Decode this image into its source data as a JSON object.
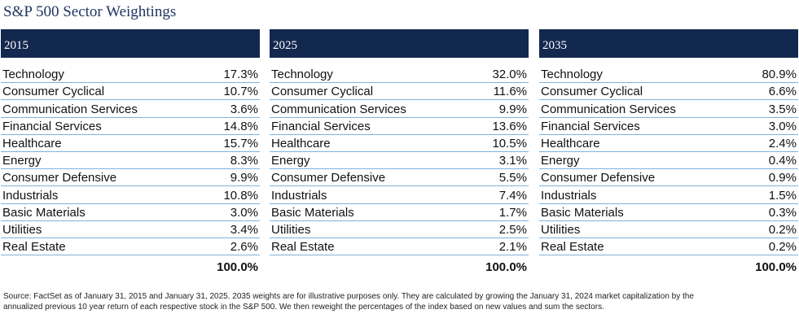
{
  "title": "S&P 500 Sector Weightings",
  "panels": [
    {
      "year": "2015",
      "rows": [
        {
          "sector": "Technology",
          "value": "17.3%"
        },
        {
          "sector": "Consumer Cyclical",
          "value": "10.7%"
        },
        {
          "sector": "Communication Services",
          "value": "3.6%"
        },
        {
          "sector": "Financial Services",
          "value": "14.8%"
        },
        {
          "sector": "Healthcare",
          "value": "15.7%"
        },
        {
          "sector": "Energy",
          "value": "8.3%"
        },
        {
          "sector": "Consumer Defensive",
          "value": "9.9%"
        },
        {
          "sector": "Industrials",
          "value": "10.8%"
        },
        {
          "sector": "Basic Materials",
          "value": "3.0%"
        },
        {
          "sector": "Utilities",
          "value": "3.4%"
        },
        {
          "sector": "Real Estate",
          "value": "2.6%"
        }
      ],
      "total": "100.0%"
    },
    {
      "year": "2025",
      "rows": [
        {
          "sector": "Technology",
          "value": "32.0%"
        },
        {
          "sector": "Consumer Cyclical",
          "value": "11.6%"
        },
        {
          "sector": "Communication Services",
          "value": "9.9%"
        },
        {
          "sector": "Financial Services",
          "value": "13.6%"
        },
        {
          "sector": "Healthcare",
          "value": "10.5%"
        },
        {
          "sector": "Energy",
          "value": "3.1%"
        },
        {
          "sector": "Consumer Defensive",
          "value": "5.5%"
        },
        {
          "sector": "Industrials",
          "value": "7.4%"
        },
        {
          "sector": "Basic Materials",
          "value": "1.7%"
        },
        {
          "sector": "Utilities",
          "value": "2.5%"
        },
        {
          "sector": "Real Estate",
          "value": "2.1%"
        }
      ],
      "total": "100.0%"
    },
    {
      "year": "2035",
      "rows": [
        {
          "sector": "Technology",
          "value": "80.9%"
        },
        {
          "sector": "Consumer Cyclical",
          "value": "6.6%"
        },
        {
          "sector": "Communication Services",
          "value": "3.5%"
        },
        {
          "sector": "Financial Services",
          "value": "3.0%"
        },
        {
          "sector": "Healthcare",
          "value": "2.4%"
        },
        {
          "sector": "Energy",
          "value": "0.4%"
        },
        {
          "sector": "Consumer Defensive",
          "value": "0.9%"
        },
        {
          "sector": "Industrials",
          "value": "1.5%"
        },
        {
          "sector": "Basic Materials",
          "value": "0.3%"
        },
        {
          "sector": "Utilities",
          "value": "0.2%"
        },
        {
          "sector": "Real Estate",
          "value": "0.2%"
        }
      ],
      "total": "100.0%"
    }
  ],
  "footnote": {
    "line1": "Source: FactSet as of January 31, 2015 and January 31, 2025. 2035 weights are for illustrative purposes only. They are calculated by growing the January 31, 2024 market capitalization by the",
    "line2": "annualized previous 10 year return of each respective stock in the S&P 500. We then reweight the percentages of the index based on new values and sum the sectors."
  },
  "colors": {
    "header_bg": "#13284f",
    "title": "#1f3560",
    "row_divider": "#7fb2dc"
  }
}
